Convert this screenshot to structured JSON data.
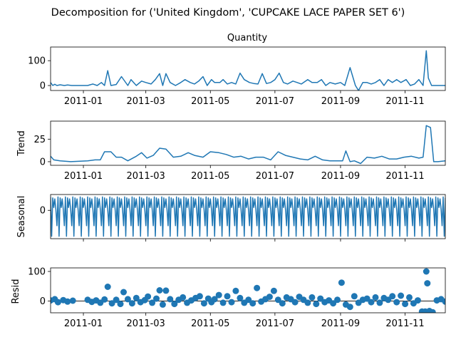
{
  "suptitle": "Decomposition for ('United Kingdom', 'CUPCAKE LACE PAPER SET 6')",
  "colors": {
    "series": "#1f77b4",
    "axis": "#000000",
    "background": "#ffffff"
  },
  "chart_data": [
    {
      "type": "line",
      "title": "Quantity",
      "ylabel": "",
      "ylim": [
        -20,
        155
      ],
      "yticks": [
        0,
        100
      ],
      "xlim": [
        "2010-12-01",
        "2011-12-09"
      ],
      "xticks": [
        "2011-01",
        "2011-03",
        "2011-05",
        "2011-07",
        "2011-09",
        "2011-11"
      ],
      "show_xtick_labels": true,
      "x": [
        "2010-12-01",
        "2010-12-03",
        "2010-12-05",
        "2010-12-07",
        "2010-12-10",
        "2010-12-14",
        "2010-12-17",
        "2010-12-21",
        "2011-01-05",
        "2011-01-10",
        "2011-01-14",
        "2011-01-18",
        "2011-01-21",
        "2011-01-24",
        "2011-01-27",
        "2011-02-01",
        "2011-02-06",
        "2011-02-12",
        "2011-02-15",
        "2011-02-20",
        "2011-02-25",
        "2011-03-01",
        "2011-03-06",
        "2011-03-10",
        "2011-03-14",
        "2011-03-17",
        "2011-03-20",
        "2011-03-24",
        "2011-03-29",
        "2011-04-03",
        "2011-04-07",
        "2011-04-12",
        "2011-04-16",
        "2011-04-20",
        "2011-04-24",
        "2011-04-28",
        "2011-05-02",
        "2011-05-05",
        "2011-05-10",
        "2011-05-13",
        "2011-05-17",
        "2011-05-21",
        "2011-05-25",
        "2011-05-29",
        "2011-06-02",
        "2011-06-07",
        "2011-06-11",
        "2011-06-15",
        "2011-06-19",
        "2011-06-23",
        "2011-06-27",
        "2011-07-01",
        "2011-07-05",
        "2011-07-09",
        "2011-07-13",
        "2011-07-18",
        "2011-07-22",
        "2011-07-26",
        "2011-08-01",
        "2011-08-05",
        "2011-08-10",
        "2011-08-14",
        "2011-08-18",
        "2011-08-22",
        "2011-08-27",
        "2011-09-01",
        "2011-09-05",
        "2011-09-10",
        "2011-09-15",
        "2011-09-18",
        "2011-09-22",
        "2011-09-26",
        "2011-09-30",
        "2011-10-04",
        "2011-10-08",
        "2011-10-12",
        "2011-10-16",
        "2011-10-20",
        "2011-10-24",
        "2011-10-28",
        "2011-11-02",
        "2011-11-06",
        "2011-11-10",
        "2011-11-14",
        "2011-11-18",
        "2011-11-21",
        "2011-11-23",
        "2011-11-26",
        "2011-11-30",
        "2011-12-04",
        "2011-12-09"
      ],
      "y": [
        12,
        0,
        5,
        0,
        3,
        0,
        2,
        0,
        0,
        6,
        0,
        12,
        0,
        60,
        0,
        4,
        36,
        0,
        24,
        0,
        18,
        12,
        6,
        24,
        48,
        0,
        48,
        12,
        0,
        12,
        24,
        12,
        6,
        18,
        36,
        0,
        24,
        12,
        12,
        24,
        6,
        12,
        6,
        50,
        24,
        12,
        8,
        6,
        48,
        8,
        12,
        24,
        50,
        12,
        6,
        18,
        12,
        6,
        24,
        12,
        12,
        24,
        0,
        12,
        6,
        12,
        0,
        72,
        0,
        -20,
        12,
        12,
        6,
        12,
        24,
        0,
        24,
        12,
        24,
        12,
        24,
        0,
        6,
        24,
        0,
        140,
        30,
        0,
        0,
        0,
        0
      ]
    },
    {
      "type": "line",
      "title": "",
      "ylabel": "Trend",
      "ylim": [
        -4,
        45
      ],
      "yticks": [
        0,
        25
      ],
      "xlim": [
        "2010-12-01",
        "2011-12-09"
      ],
      "xticks": [
        "2011-01",
        "2011-03",
        "2011-05",
        "2011-07",
        "2011-09",
        "2011-11"
      ],
      "show_xtick_labels": true,
      "x": [
        "2010-12-01",
        "2010-12-04",
        "2010-12-10",
        "2010-12-20",
        "2011-01-05",
        "2011-01-12",
        "2011-01-17",
        "2011-01-21",
        "2011-01-27",
        "2011-02-01",
        "2011-02-06",
        "2011-02-12",
        "2011-02-20",
        "2011-02-25",
        "2011-03-02",
        "2011-03-08",
        "2011-03-14",
        "2011-03-20",
        "2011-03-27",
        "2011-04-03",
        "2011-04-10",
        "2011-04-16",
        "2011-04-24",
        "2011-05-01",
        "2011-05-09",
        "2011-05-16",
        "2011-05-23",
        "2011-05-30",
        "2011-06-06",
        "2011-06-13",
        "2011-06-20",
        "2011-06-27",
        "2011-07-04",
        "2011-07-11",
        "2011-07-18",
        "2011-07-25",
        "2011-08-01",
        "2011-08-08",
        "2011-08-15",
        "2011-08-22",
        "2011-08-29",
        "2011-09-03",
        "2011-09-06",
        "2011-09-10",
        "2011-09-14",
        "2011-09-20",
        "2011-09-26",
        "2011-10-03",
        "2011-10-10",
        "2011-10-17",
        "2011-10-24",
        "2011-10-31",
        "2011-11-07",
        "2011-11-14",
        "2011-11-18",
        "2011-11-21",
        "2011-11-25",
        "2011-11-28",
        "2011-12-02",
        "2011-12-09"
      ],
      "y": [
        6,
        2,
        1,
        0,
        1,
        2,
        2,
        11,
        11,
        5,
        5,
        1,
        6,
        10,
        4,
        7,
        15,
        14,
        5,
        6,
        10,
        7,
        5,
        11,
        10,
        8,
        5,
        6,
        3,
        5,
        5,
        2,
        11,
        7,
        5,
        3,
        2,
        6,
        2,
        1,
        1,
        1,
        12,
        0,
        1,
        -2,
        5,
        4,
        6,
        3,
        3,
        5,
        6,
        4,
        5,
        40,
        38,
        0,
        0,
        1
      ]
    },
    {
      "type": "line",
      "title": "",
      "ylabel": "Seasonal",
      "ylim": [
        -5.9,
        3.3
      ],
      "yticks": [
        0
      ],
      "xlim": [
        "2010-12-01",
        "2011-12-09"
      ],
      "xticks": [
        "2011-01",
        "2011-03",
        "2011-05",
        "2011-07",
        "2011-09",
        "2011-11"
      ],
      "show_xtick_labels": false,
      "period_days": 7,
      "weekly_pattern": [
        2.8,
        -5.4,
        2.6,
        0.6,
        2.4,
        0.2,
        -3.2
      ]
    },
    {
      "type": "scatter",
      "title": "",
      "ylabel": "Resid",
      "ylim": [
        -40,
        112
      ],
      "yticks": [
        0,
        100
      ],
      "xlim": [
        "2010-12-01",
        "2011-12-09"
      ],
      "xticks": [
        "2011-01",
        "2011-03",
        "2011-05",
        "2011-07",
        "2011-09",
        "2011-11"
      ],
      "show_xtick_labels": true,
      "baseline": 0,
      "x": [
        "2010-12-01",
        "2010-12-05",
        "2010-12-08",
        "2010-12-13",
        "2010-12-17",
        "2010-12-22",
        "2011-01-05",
        "2011-01-09",
        "2011-01-13",
        "2011-01-17",
        "2011-01-21",
        "2011-01-24",
        "2011-01-28",
        "2011-02-01",
        "2011-02-05",
        "2011-02-08",
        "2011-02-12",
        "2011-02-16",
        "2011-02-20",
        "2011-02-24",
        "2011-02-28",
        "2011-03-03",
        "2011-03-07",
        "2011-03-11",
        "2011-03-14",
        "2011-03-17",
        "2011-03-20",
        "2011-03-24",
        "2011-03-28",
        "2011-04-01",
        "2011-04-05",
        "2011-04-09",
        "2011-04-13",
        "2011-04-17",
        "2011-04-21",
        "2011-04-25",
        "2011-04-29",
        "2011-05-02",
        "2011-05-05",
        "2011-05-09",
        "2011-05-13",
        "2011-05-17",
        "2011-05-21",
        "2011-05-25",
        "2011-05-29",
        "2011-06-02",
        "2011-06-06",
        "2011-06-10",
        "2011-06-14",
        "2011-06-18",
        "2011-06-22",
        "2011-06-26",
        "2011-06-30",
        "2011-07-04",
        "2011-07-08",
        "2011-07-12",
        "2011-07-16",
        "2011-07-20",
        "2011-07-24",
        "2011-07-28",
        "2011-08-01",
        "2011-08-05",
        "2011-08-09",
        "2011-08-13",
        "2011-08-17",
        "2011-08-21",
        "2011-08-25",
        "2011-08-29",
        "2011-09-02",
        "2011-09-06",
        "2011-09-10",
        "2011-09-14",
        "2011-09-18",
        "2011-09-22",
        "2011-09-26",
        "2011-09-30",
        "2011-10-04",
        "2011-10-08",
        "2011-10-12",
        "2011-10-16",
        "2011-10-20",
        "2011-10-24",
        "2011-10-28",
        "2011-11-01",
        "2011-11-05",
        "2011-11-09",
        "2011-11-13",
        "2011-11-17",
        "2011-11-20",
        "2011-11-21",
        "2011-11-22",
        "2011-11-24",
        "2011-11-27",
        "2011-12-01",
        "2011-12-05",
        "2011-12-09"
      ],
      "y": [
        2,
        6,
        -4,
        3,
        -2,
        1,
        4,
        -3,
        2,
        -6,
        5,
        48,
        -8,
        4,
        -10,
        30,
        6,
        -8,
        10,
        -4,
        3,
        15,
        -6,
        8,
        36,
        -12,
        35,
        6,
        -10,
        4,
        12,
        -6,
        2,
        10,
        16,
        -8,
        8,
        -4,
        6,
        20,
        -6,
        16,
        -4,
        34,
        10,
        -6,
        4,
        -8,
        44,
        -2,
        6,
        14,
        34,
        4,
        -8,
        12,
        6,
        -4,
        14,
        4,
        -6,
        12,
        -10,
        8,
        -4,
        2,
        -8,
        4,
        62,
        -12,
        -20,
        16,
        -6,
        4,
        8,
        -4,
        12,
        -6,
        10,
        4,
        16,
        -4,
        18,
        -10,
        12,
        -8,
        2,
        -36,
        -36,
        100,
        60,
        -34,
        -38,
        2,
        6,
        -2
      ]
    }
  ]
}
